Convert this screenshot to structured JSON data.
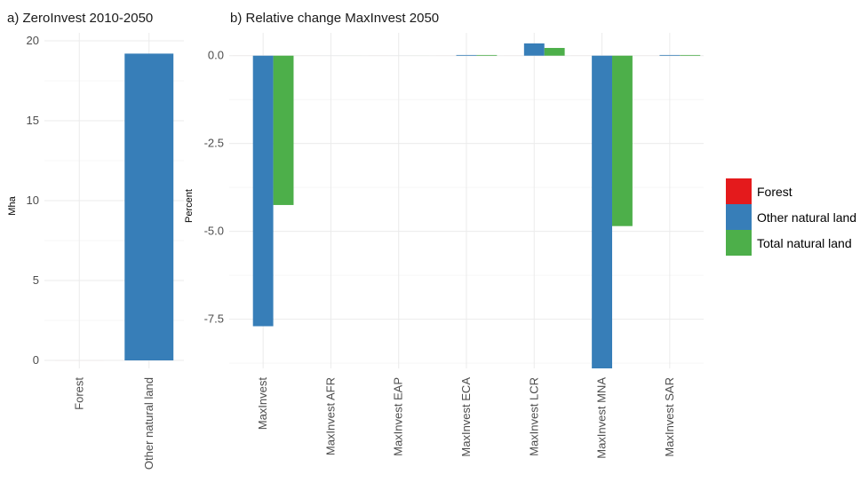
{
  "chart_data": [
    {
      "type": "bar",
      "title": "a) ZeroInvest 2010-2050",
      "ylabel": "Mha",
      "xlabel": "",
      "categories": [
        "Forest",
        "Other natural land"
      ],
      "series": [
        {
          "name": "Forest",
          "values": [
            0,
            null
          ]
        },
        {
          "name": "Other natural land",
          "values": [
            null,
            19.2
          ]
        }
      ],
      "ylim": [
        -0.5,
        20.5
      ],
      "yticks": [
        "0",
        "5",
        "10",
        "15",
        "20"
      ],
      "grid": true
    },
    {
      "type": "bar",
      "title": "b) Relative change MaxInvest 2050",
      "ylabel": "Percent",
      "xlabel": "",
      "categories": [
        "MaxInvest",
        "MaxInvest AFR",
        "MaxInvest EAP",
        "MaxInvest ECA",
        "MaxInvest LCR",
        "MaxInvest MNA",
        "MaxInvest SAR"
      ],
      "series": [
        {
          "name": "Forest",
          "values": [
            0,
            0,
            0,
            0,
            0,
            0,
            0
          ]
        },
        {
          "name": "Other natural land",
          "values": [
            -7.7,
            0,
            0,
            0.02,
            0.35,
            -8.9,
            0.02
          ]
        },
        {
          "name": "Total natural land",
          "values": [
            -4.25,
            0,
            0,
            0.02,
            0.22,
            -4.85,
            0.02
          ]
        }
      ],
      "ylim": [
        -8.9,
        0.65
      ],
      "yticks": [
        "0.0",
        "-2.5",
        "-5.0",
        "-7.5"
      ],
      "grid": true
    }
  ],
  "legend": {
    "placement": "right",
    "items": [
      {
        "label": "Forest",
        "color": "#e41a1c"
      },
      {
        "label": "Other natural land",
        "color": "#377eb8"
      },
      {
        "label": "Total natural land",
        "color": "#4daf4a"
      }
    ]
  },
  "colors": {
    "forest": "#e41a1c",
    "other_natural_land": "#377eb8",
    "total_natural_land": "#4daf4a"
  }
}
